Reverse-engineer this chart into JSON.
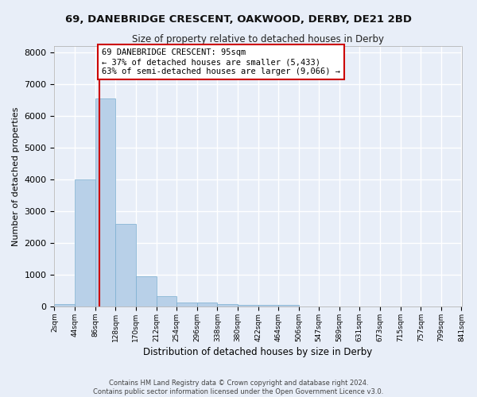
{
  "title1": "69, DANEBRIDGE CRESCENT, OAKWOOD, DERBY, DE21 2BD",
  "title2": "Size of property relative to detached houses in Derby",
  "xlabel": "Distribution of detached houses by size in Derby",
  "ylabel": "Number of detached properties",
  "bar_color": "#b8d0e8",
  "bar_edge_color": "#7aaed0",
  "figure_bg_color": "#e8eef8",
  "axes_bg_color": "#e8eef8",
  "grid_color": "#ffffff",
  "annotation_line_color": "#cc0000",
  "annotation_box_edge_color": "#cc0000",
  "annotation_text": "69 DANEBRIDGE CRESCENT: 95sqm\n← 37% of detached houses are smaller (5,433)\n63% of semi-detached houses are larger (9,066) →",
  "property_size": 95,
  "footnote1": "Contains HM Land Registry data © Crown copyright and database right 2024.",
  "footnote2": "Contains public sector information licensed under the Open Government Licence v3.0.",
  "bin_edges": [
    2,
    44,
    86,
    128,
    170,
    212,
    254,
    296,
    338,
    380,
    422,
    464,
    506,
    547,
    589,
    631,
    673,
    715,
    757,
    799,
    841
  ],
  "bin_labels": [
    "2sqm",
    "44sqm",
    "86sqm",
    "128sqm",
    "170sqm",
    "212sqm",
    "254sqm",
    "296sqm",
    "338sqm",
    "380sqm",
    "422sqm",
    "464sqm",
    "506sqm",
    "547sqm",
    "589sqm",
    "631sqm",
    "673sqm",
    "715sqm",
    "757sqm",
    "799sqm",
    "841sqm"
  ],
  "bar_heights": [
    80,
    4000,
    6550,
    2600,
    950,
    320,
    130,
    120,
    80,
    60,
    60,
    40,
    0,
    0,
    0,
    0,
    0,
    0,
    0,
    0
  ],
  "ylim": [
    0,
    8200
  ],
  "yticks": [
    0,
    1000,
    2000,
    3000,
    4000,
    5000,
    6000,
    7000,
    8000
  ]
}
